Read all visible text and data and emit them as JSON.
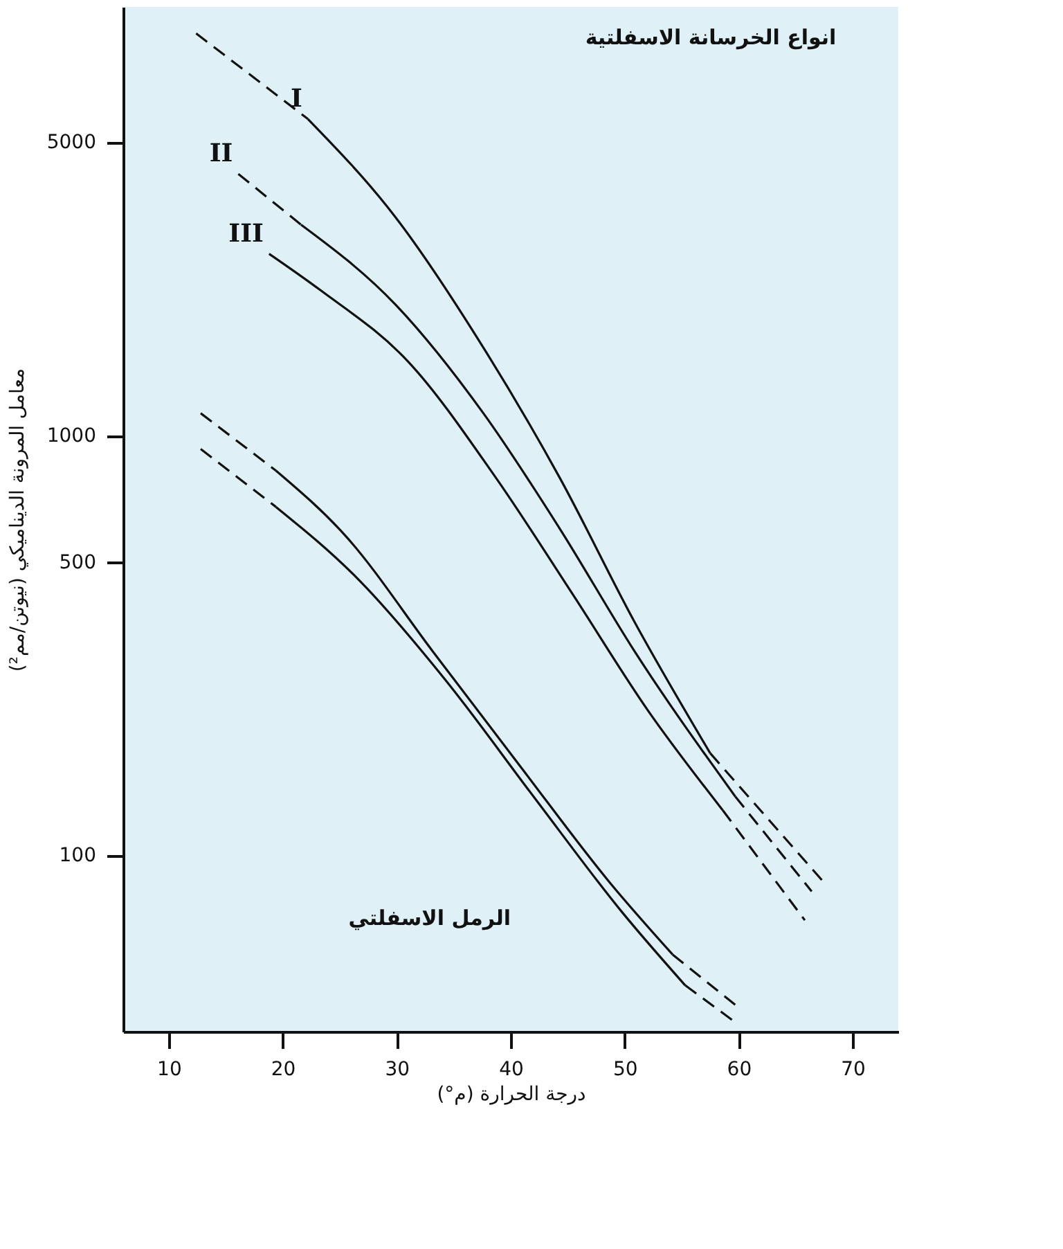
{
  "chart_data": {
    "type": "line",
    "xlabel": "درجة الحرارة (م°)",
    "ylabel": "معامل المرونة الديناميكي (نيوتن/مم²)",
    "log": "y",
    "xlim": [
      6,
      74
    ],
    "xticks": [
      10,
      20,
      30,
      40,
      50,
      60,
      70
    ],
    "ylim": [
      38,
      10500
    ],
    "yticks": [
      100,
      500,
      1000,
      5000
    ],
    "grid": false,
    "marker": "none",
    "series": [
      {
        "color": "#111111",
        "line_style": "dashed",
        "x": [
          12.4,
          22.2
        ],
        "values": [
          9080,
          5680
        ]
      },
      {
        "name": "I",
        "color": "#111111",
        "line_style": "solid",
        "x": [
          22.2,
          29.9,
          37.6,
          44.3,
          50.9,
          57.5
        ],
        "values": [
          5680,
          3310,
          1620,
          793,
          358,
          175
        ]
      },
      {
        "color": "#111111",
        "line_style": "dashed",
        "x": [
          57.5,
          67.5
        ],
        "values": [
          175,
          86
        ]
      },
      {
        "name": "II",
        "color": "#111111",
        "line_style": "dashed",
        "x": [
          16.1,
          21.6
        ],
        "values": [
          4200,
          3180
        ]
      },
      {
        "color": "#111111",
        "line_style": "solid",
        "x": [
          21.6,
          29.9,
          37.6,
          44.3,
          50.9,
          59.7
        ],
        "values": [
          3180,
          2050,
          1130,
          600,
          305,
          138
        ]
      },
      {
        "color": "#111111",
        "line_style": "dashed",
        "x": [
          59.7,
          66.4
        ],
        "values": [
          138,
          82
        ]
      },
      {
        "name": "III",
        "color": "#111111",
        "line_style": "solid",
        "x": [
          18.8,
          23.3,
          31.0,
          38.7,
          45.4,
          52.0,
          58.6
        ],
        "values": [
          2710,
          2220,
          1500,
          793,
          420,
          222,
          128
        ]
      },
      {
        "color": "#111111",
        "line_style": "dashed",
        "x": [
          58.6,
          65.8
        ],
        "values": [
          128,
          70
        ]
      },
      {
        "color": "#111111",
        "line_style": "dashed",
        "x": [
          12.8,
          19.4
        ],
        "values": [
          1130,
          825
        ]
      },
      {
        "color": "#111111",
        "line_style": "solid",
        "x": [
          19.4,
          25.5,
          33.2,
          40.9,
          48.7,
          54.2
        ],
        "values": [
          825,
          577,
          305,
          162,
          86,
          58
        ]
      },
      {
        "color": "#111111",
        "line_style": "dashed",
        "x": [
          54.2,
          59.7
        ],
        "values": [
          58,
          44
        ]
      },
      {
        "color": "#111111",
        "line_style": "dashed",
        "x": [
          12.8,
          19.4
        ],
        "values": [
          929,
          676
        ]
      },
      {
        "color": "#111111",
        "line_style": "solid",
        "x": [
          19.4,
          26.6,
          34.3,
          42.0,
          49.8,
          55.3
        ],
        "values": [
          676,
          455,
          261,
          138,
          73,
          49
        ]
      },
      {
        "color": "#111111",
        "line_style": "dashed",
        "x": [
          55.3,
          59.7
        ],
        "values": [
          49,
          40
        ]
      }
    ],
    "annotations": [
      "انواع الخرسانة الاسفلتية",
      "الرمل الاسفلتي"
    ]
  }
}
